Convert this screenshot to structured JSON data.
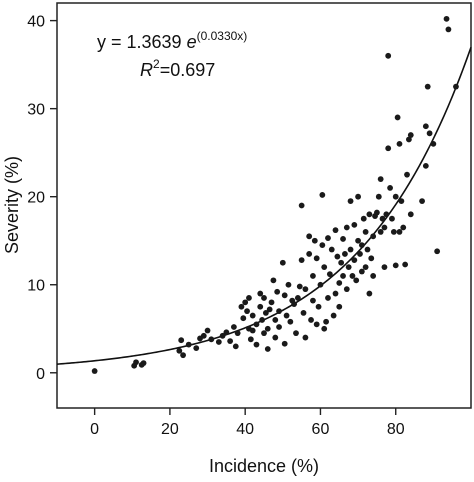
{
  "chart_data": {
    "type": "scatter",
    "title": "",
    "xlabel": "Incidence (%)",
    "ylabel": "Severity (%)",
    "xlim": [
      -10,
      100
    ],
    "ylim": [
      -4,
      42
    ],
    "xticks": [
      0,
      20,
      40,
      60,
      80
    ],
    "yticks": [
      0,
      10,
      20,
      30,
      40
    ],
    "grid": false,
    "legend": "none",
    "annotation": {
      "equation_prefix": "y = 1.3639 ",
      "equation_base": "e",
      "equation_exponent": "(0.0330x)",
      "r2_symbol": "R",
      "r2_power": "2",
      "r2_value": "=0.697"
    },
    "fit": {
      "model": "exponential",
      "a": 1.3639,
      "b": 0.033,
      "x_range": [
        -10,
        100
      ]
    },
    "colors": {
      "points": "#1a1a1a",
      "curve": "#111111",
      "axes": "#222222"
    },
    "points": [
      [
        0,
        0.2
      ],
      [
        10.5,
        0.8
      ],
      [
        11,
        1.2
      ],
      [
        12.5,
        0.9
      ],
      [
        13,
        1.1
      ],
      [
        22.5,
        2.5
      ],
      [
        23,
        3.7
      ],
      [
        23.5,
        2.0
      ],
      [
        25,
        3.2
      ],
      [
        27,
        2.8
      ],
      [
        28,
        3.9
      ],
      [
        29,
        4.2
      ],
      [
        30,
        4.8
      ],
      [
        31,
        3.8
      ],
      [
        33,
        3.5
      ],
      [
        34,
        4.2
      ],
      [
        35,
        4.6
      ],
      [
        36,
        3.6
      ],
      [
        37,
        5.2
      ],
      [
        37.5,
        3.0
      ],
      [
        38,
        4.5
      ],
      [
        39,
        7.5
      ],
      [
        39.5,
        6.2
      ],
      [
        40,
        8.0
      ],
      [
        40.5,
        7.0
      ],
      [
        41,
        8.5
      ],
      [
        41,
        5.0
      ],
      [
        41.5,
        3.8
      ],
      [
        42,
        4.8
      ],
      [
        42,
        6.5
      ],
      [
        43,
        3.2
      ],
      [
        43,
        5.5
      ],
      [
        44,
        7.5
      ],
      [
        44,
        9.0
      ],
      [
        44.5,
        6.0
      ],
      [
        45,
        8.5
      ],
      [
        45,
        4.5
      ],
      [
        45.5,
        6.8
      ],
      [
        46,
        2.7
      ],
      [
        46,
        5.0
      ],
      [
        46.5,
        7.2
      ],
      [
        47,
        8.0
      ],
      [
        47.5,
        10.5
      ],
      [
        48,
        6.0
      ],
      [
        48,
        4.0
      ],
      [
        48.5,
        9.2
      ],
      [
        49,
        7.0
      ],
      [
        49,
        5.2
      ],
      [
        50,
        12.5
      ],
      [
        50.5,
        8.8
      ],
      [
        50.5,
        3.3
      ],
      [
        51,
        6.5
      ],
      [
        51.5,
        10.0
      ],
      [
        52,
        5.8
      ],
      [
        52.5,
        8.2
      ],
      [
        53,
        7.8
      ],
      [
        53.5,
        4.5
      ],
      [
        54,
        8.5
      ],
      [
        54.5,
        9.8
      ],
      [
        55,
        12.8
      ],
      [
        55,
        19.0
      ],
      [
        55.5,
        6.8
      ],
      [
        56,
        9.5
      ],
      [
        56,
        4.0
      ],
      [
        57,
        15.5
      ],
      [
        57,
        13.5
      ],
      [
        57.5,
        6.0
      ],
      [
        58,
        8.2
      ],
      [
        58,
        11.0
      ],
      [
        58.5,
        15.0
      ],
      [
        59,
        5.5
      ],
      [
        59,
        13.0
      ],
      [
        59.5,
        7.5
      ],
      [
        60,
        10.0
      ],
      [
        60.5,
        14.5
      ],
      [
        60.5,
        20.2
      ],
      [
        61,
        5.0
      ],
      [
        61,
        12.0
      ],
      [
        61.5,
        5.8
      ],
      [
        62,
        15.3
      ],
      [
        62,
        8.5
      ],
      [
        62.5,
        11.2
      ],
      [
        63,
        14.0
      ],
      [
        63.5,
        6.5
      ],
      [
        64,
        9.0
      ],
      [
        64,
        16.2
      ],
      [
        64.5,
        13.2
      ],
      [
        65,
        10.2
      ],
      [
        65,
        7.5
      ],
      [
        65.5,
        12.5
      ],
      [
        66,
        15.2
      ],
      [
        66,
        11.0
      ],
      [
        66.5,
        13.5
      ],
      [
        67,
        9.5
      ],
      [
        67,
        16.5
      ],
      [
        67.5,
        12.0
      ],
      [
        68,
        19.5
      ],
      [
        68,
        14.0
      ],
      [
        68.5,
        11.0
      ],
      [
        69,
        16.8
      ],
      [
        69,
        12.8
      ],
      [
        69.5,
        10.5
      ],
      [
        70,
        15.0
      ],
      [
        70,
        20.0
      ],
      [
        70.5,
        13.5
      ],
      [
        71,
        11.5
      ],
      [
        71,
        14.5
      ],
      [
        71.5,
        17.5
      ],
      [
        72,
        12.0
      ],
      [
        72,
        16.0
      ],
      [
        72.5,
        14.0
      ],
      [
        73,
        9.0
      ],
      [
        73,
        18.0
      ],
      [
        73.5,
        13.0
      ],
      [
        74,
        15.5
      ],
      [
        74,
        11.0
      ],
      [
        74.5,
        17.8
      ],
      [
        75,
        18.2
      ],
      [
        75.5,
        20.0
      ],
      [
        76,
        16.0
      ],
      [
        76,
        22.0
      ],
      [
        76.5,
        17.5
      ],
      [
        77,
        16.5
      ],
      [
        77,
        12.0
      ],
      [
        77.5,
        18.0
      ],
      [
        78,
        25.5
      ],
      [
        78,
        36.0
      ],
      [
        78.5,
        21.0
      ],
      [
        79,
        17.5
      ],
      [
        79.5,
        16.0
      ],
      [
        80,
        20.0
      ],
      [
        80,
        12.2
      ],
      [
        80.5,
        29.0
      ],
      [
        81,
        26.0
      ],
      [
        81,
        16.0
      ],
      [
        81.5,
        19.5
      ],
      [
        82,
        16.5
      ],
      [
        82.5,
        12.3
      ],
      [
        83,
        22.5
      ],
      [
        83.5,
        26.5
      ],
      [
        84,
        27.0
      ],
      [
        84,
        18.0
      ],
      [
        87,
        19.5
      ],
      [
        88,
        28.0
      ],
      [
        88,
        23.5
      ],
      [
        88.5,
        32.5
      ],
      [
        89,
        27.2
      ],
      [
        90,
        26.0
      ],
      [
        91,
        13.8
      ],
      [
        93.5,
        40.2
      ],
      [
        94,
        39.0
      ],
      [
        96,
        32.5
      ]
    ]
  }
}
